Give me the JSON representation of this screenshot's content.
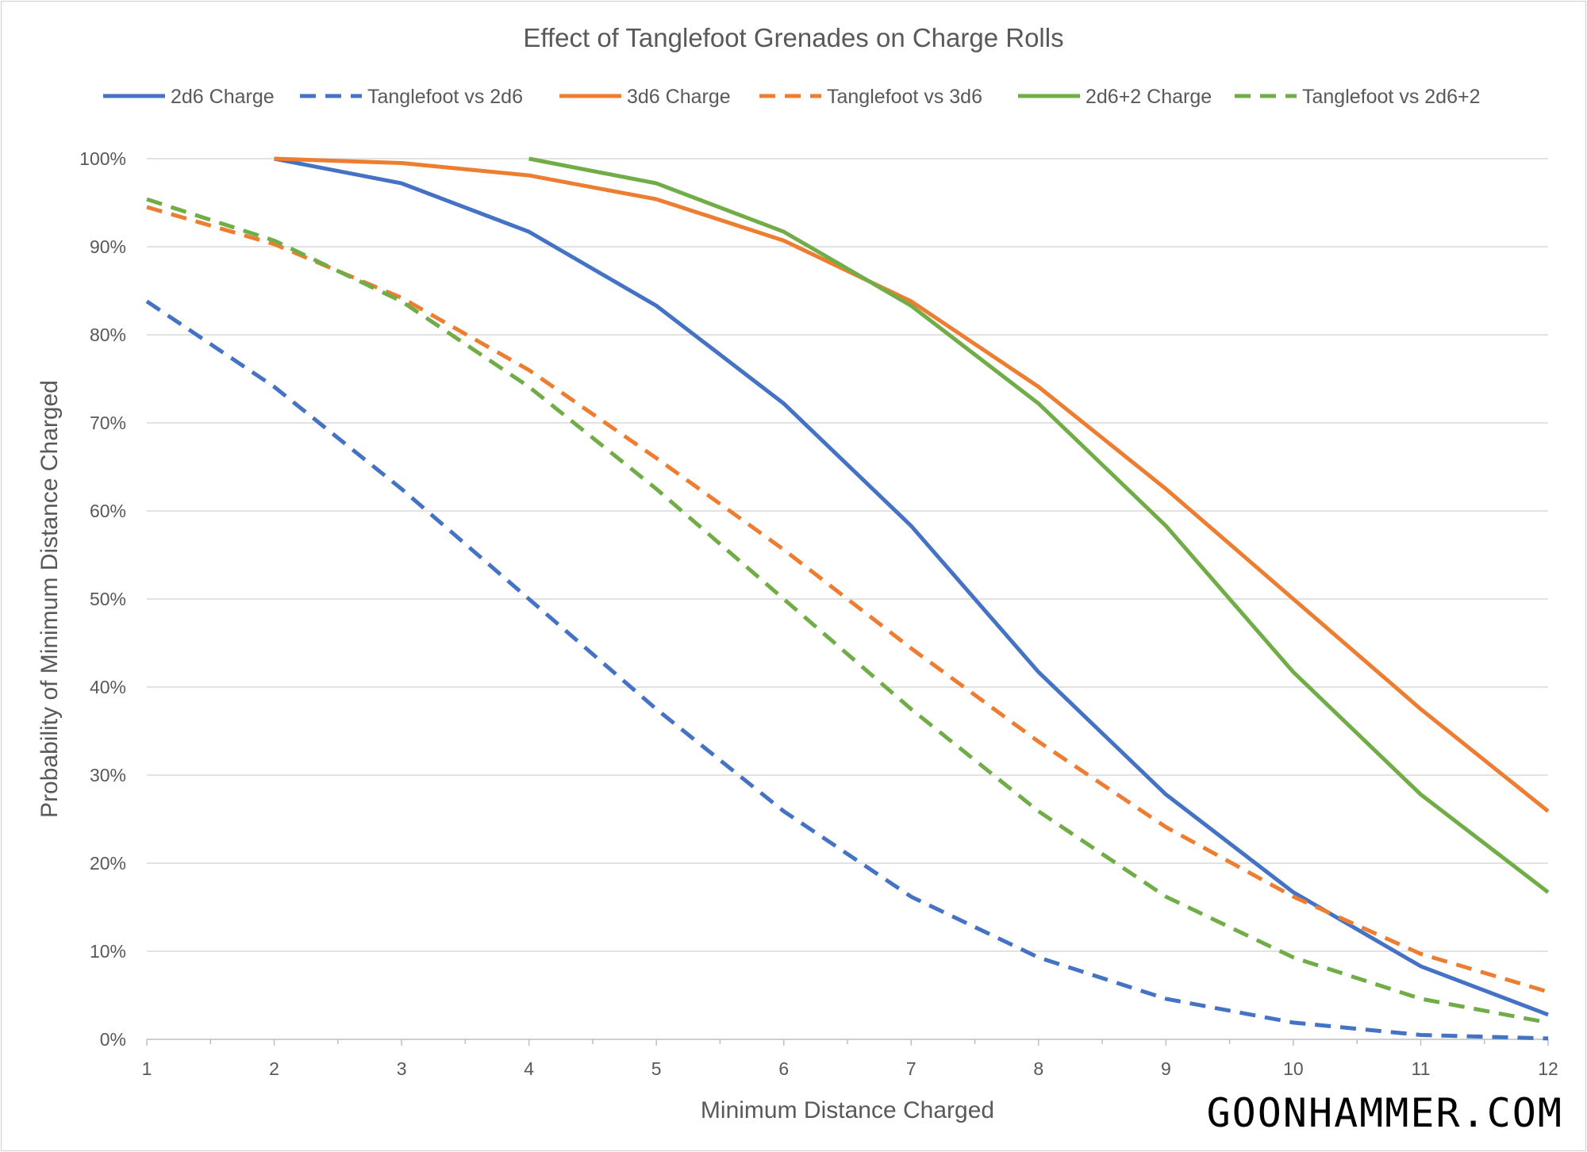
{
  "chart_data": {
    "type": "line",
    "title": "Effect of Tanglefoot Grenades on Charge Rolls",
    "xlabel": "Minimum Distance Charged",
    "ylabel": "Probability of Minimum Distance Charged",
    "x": [
      1,
      2,
      3,
      4,
      5,
      6,
      7,
      8,
      9,
      10,
      11,
      12
    ],
    "xlim": [
      1,
      12
    ],
    "ylim": [
      0,
      1
    ],
    "yticks": [
      "0%",
      "10%",
      "20%",
      "30%",
      "40%",
      "50%",
      "60%",
      "70%",
      "80%",
      "90%",
      "100%"
    ],
    "grid": true,
    "legend": "top",
    "series": [
      {
        "name": "2d6 Charge",
        "color": "#4472C4",
        "dash": false,
        "values": [
          null,
          1.0,
          0.972,
          0.917,
          0.833,
          0.722,
          0.583,
          0.417,
          0.278,
          0.167,
          0.083,
          0.028
        ]
      },
      {
        "name": "Tanglefoot vs 2d6",
        "color": "#4472C4",
        "dash": true,
        "values": [
          0.838,
          0.741,
          0.625,
          0.5,
          0.375,
          0.259,
          0.162,
          0.093,
          0.046,
          0.019,
          0.005,
          0.001
        ]
      },
      {
        "name": "3d6 Charge",
        "color": "#ED7D31",
        "dash": false,
        "values": [
          null,
          1.0,
          0.995,
          0.981,
          0.954,
          0.907,
          0.838,
          0.741,
          0.625,
          0.5,
          0.375,
          0.259
        ]
      },
      {
        "name": "Tanglefoot vs 3d6",
        "color": "#ED7D31",
        "dash": true,
        "values": [
          0.945,
          0.903,
          0.842,
          0.76,
          0.66,
          0.556,
          0.444,
          0.338,
          0.241,
          0.162,
          0.097,
          0.054
        ]
      },
      {
        "name": "2d6+2 Charge",
        "color": "#70AD47",
        "dash": false,
        "values": [
          null,
          null,
          null,
          1.0,
          0.972,
          0.917,
          0.833,
          0.722,
          0.583,
          0.417,
          0.278,
          0.167
        ]
      },
      {
        "name": "Tanglefoot vs 2d6+2",
        "color": "#70AD47",
        "dash": true,
        "values": [
          0.954,
          0.907,
          0.838,
          0.741,
          0.625,
          0.5,
          0.375,
          0.259,
          0.162,
          0.093,
          0.046,
          0.019
        ]
      }
    ]
  },
  "watermark": "GOONHAMMER.COM"
}
